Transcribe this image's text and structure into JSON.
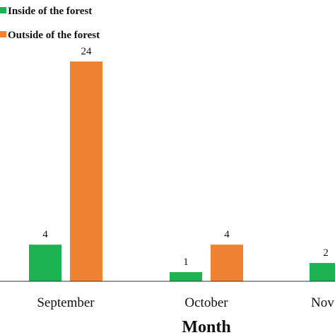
{
  "chart_data": {
    "type": "bar",
    "xlabel": "Month",
    "ylabel": "",
    "categories": [
      "September",
      "October",
      "November"
    ],
    "tick_labels_visible": [
      "September",
      "October",
      "Nov"
    ],
    "series": [
      {
        "name": "Inside of the forest",
        "values": [
          4,
          1,
          2
        ],
        "color": "#1db353"
      },
      {
        "name": "Outside of the forest",
        "values": [
          24,
          4,
          null
        ],
        "color": "#ef8232"
      }
    ],
    "ylim": [
      0,
      24
    ],
    "grid": false,
    "legend_position": "top-left",
    "data_labels": true
  }
}
